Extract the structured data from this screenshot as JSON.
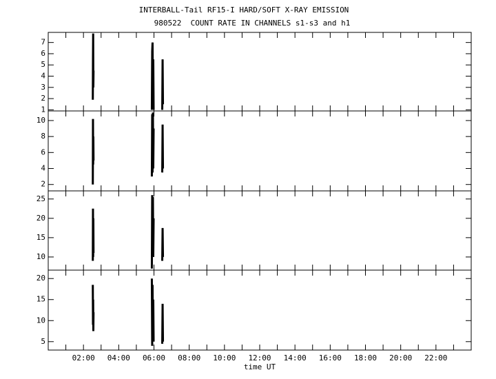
{
  "chart_data": [
    {
      "type": "line",
      "title": "INTERBALL-Tail RF15-I HARD/SOFT X-RAY EMISSION",
      "subtitle": "980522  COUNT RATE IN CHANNELS s1-s3 and h1",
      "color": "#000000",
      "xlim": [
        0,
        24
      ],
      "xticks": [
        1,
        2,
        3,
        4,
        5,
        6,
        7,
        8,
        9,
        10,
        11,
        12,
        13,
        14,
        15,
        16,
        17,
        18,
        19,
        20,
        21,
        22,
        23
      ],
      "ylim": [
        0.9,
        7.9
      ],
      "yticks": [
        1,
        2,
        3,
        4,
        5,
        6,
        7
      ],
      "x": [
        2.53,
        2.54,
        2.55,
        2.56,
        2.57,
        4,
        5.88,
        5.9,
        5.92,
        5.94,
        5.96,
        5.98,
        6.2,
        6.47,
        6.49,
        6.51
      ],
      "values": [
        1.9,
        5.5,
        7.8,
        3.0,
        4.5,
        null,
        1.0,
        6.2,
        7.0,
        2.0,
        5.5,
        1.0,
        null,
        1.0,
        5.5,
        1.5
      ]
    },
    {
      "type": "line",
      "color": "#000000",
      "xlim": [
        0,
        24
      ],
      "xticks": [
        1,
        2,
        3,
        4,
        5,
        6,
        7,
        8,
        9,
        10,
        11,
        12,
        13,
        14,
        15,
        16,
        17,
        18,
        19,
        20,
        21,
        22,
        23
      ],
      "ylim": [
        1.2,
        11.2
      ],
      "yticks": [
        2,
        4,
        6,
        8,
        10
      ],
      "x": [
        2.53,
        2.54,
        2.55,
        2.56,
        2.57,
        4,
        5.88,
        5.9,
        5.92,
        5.94,
        5.96,
        5.98,
        6.2,
        6.47,
        6.49,
        6.51
      ],
      "values": [
        2.0,
        10.2,
        4.5,
        8.0,
        5.0,
        null,
        3.0,
        10.8,
        3.5,
        11.0,
        4.0,
        9.0,
        null,
        3.5,
        9.5,
        4.0
      ]
    },
    {
      "type": "line",
      "color": "#000000",
      "xlim": [
        0,
        24
      ],
      "xticks": [
        1,
        2,
        3,
        4,
        5,
        6,
        7,
        8,
        9,
        10,
        11,
        12,
        13,
        14,
        15,
        16,
        17,
        18,
        19,
        20,
        21,
        22,
        23
      ],
      "ylim": [
        6.6,
        27.1
      ],
      "yticks": [
        10,
        15,
        20,
        25
      ],
      "x": [
        2.53,
        2.54,
        2.55,
        2.56,
        2.57,
        4,
        5.88,
        5.9,
        5.92,
        5.94,
        5.96,
        5.98,
        6.2,
        6.47,
        6.49,
        6.51
      ],
      "values": [
        9.0,
        22.5,
        10.0,
        20.0,
        11.0,
        null,
        7.0,
        26.0,
        12.0,
        25.5,
        10.0,
        20.0,
        null,
        9.0,
        17.5,
        10.0
      ]
    },
    {
      "type": "line",
      "color": "#000000",
      "xlim": [
        0,
        24
      ],
      "xlabel": "time UT",
      "xticks": [
        {
          "value": 2,
          "label": "02:00"
        },
        {
          "value": 4,
          "label": "04:00"
        },
        {
          "value": 6,
          "label": "06:00"
        },
        {
          "value": 8,
          "label": "08:00"
        },
        {
          "value": 10,
          "label": "10:00"
        },
        {
          "value": 12,
          "label": "12:00"
        },
        {
          "value": 14,
          "label": "14:00"
        },
        {
          "value": 16,
          "label": "16:00"
        },
        {
          "value": 18,
          "label": "18:00"
        },
        {
          "value": 20,
          "label": "20:00"
        },
        {
          "value": 22,
          "label": "22:00"
        }
      ],
      "xminorticks": [
        1,
        3,
        5,
        7,
        9,
        11,
        13,
        15,
        17,
        19,
        21,
        23
      ],
      "ylim": [
        3,
        22
      ],
      "yticks": [
        5,
        10,
        15,
        20
      ],
      "x": [
        2.53,
        2.54,
        2.55,
        2.56,
        2.57,
        4,
        5.88,
        5.9,
        5.92,
        5.94,
        5.96,
        5.98,
        6.2,
        6.47,
        6.49,
        6.51
      ],
      "values": [
        18.5,
        9.0,
        15.0,
        7.5,
        12.0,
        null,
        20.0,
        4.0,
        18.5,
        6.5,
        15.0,
        5.0,
        null,
        4.5,
        14.0,
        5.0
      ]
    }
  ]
}
